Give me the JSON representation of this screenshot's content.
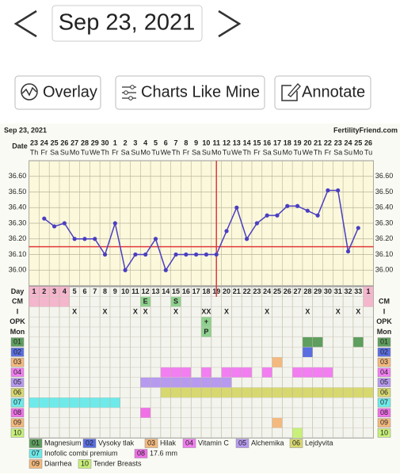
{
  "nav": {
    "date": "Sep 23, 2021"
  },
  "buttons": [
    "Overlay",
    "Charts Like Mine",
    "Annotate"
  ],
  "chart_data": {
    "type": "line",
    "title": "Sep 23, 2021",
    "site": "FertilityFriend.com",
    "date_label": "Date",
    "dates": [
      "23",
      "24",
      "25",
      "26",
      "27",
      "28",
      "29",
      "30",
      "1",
      "2",
      "3",
      "4",
      "5",
      "6",
      "7",
      "8",
      "9",
      "10",
      "11",
      "12",
      "13",
      "14",
      "15",
      "16",
      "17",
      "18",
      "19",
      "20",
      "21",
      "22",
      "23",
      "24",
      "25",
      "26"
    ],
    "weekdays": [
      "Th",
      "Fr",
      "Sa",
      "Su",
      "Mo",
      "Tu",
      "We",
      "Th",
      "Fr",
      "Sa",
      "Su",
      "Mo",
      "Tu",
      "We",
      "Th",
      "Fr",
      "Sa",
      "Su",
      "Mo",
      "Tu",
      "We",
      "Th",
      "Fr",
      "Sa",
      "Su",
      "Mo",
      "Tu",
      "We",
      "Th",
      "Fr",
      "Sa",
      "Su",
      "Mo",
      "Tu"
    ],
    "temps": {
      "color": "#4a3fc0",
      "values": [
        null,
        36.33,
        36.28,
        36.3,
        36.2,
        36.2,
        36.2,
        36.1,
        36.3,
        36.0,
        36.1,
        36.1,
        36.2,
        36.0,
        36.1,
        36.1,
        36.1,
        36.1,
        36.1,
        36.25,
        36.4,
        36.2,
        36.3,
        36.35,
        36.35,
        36.41,
        36.41,
        36.38,
        36.35,
        36.51,
        36.51,
        36.12,
        36.27,
        null
      ]
    },
    "ylim": [
      35.9,
      36.7
    ],
    "yticks": [
      {
        "value": 36.0,
        "label": "36.00"
      },
      {
        "value": 36.1,
        "label": "36.10"
      },
      {
        "value": 36.2,
        "label": "36.20"
      },
      {
        "value": 36.3,
        "label": "36.30"
      },
      {
        "value": 36.4,
        "label": "36.40"
      },
      {
        "value": 36.5,
        "label": "36.50"
      },
      {
        "value": 36.6,
        "label": "36.60"
      }
    ],
    "grid": true,
    "coverline": 36.15,
    "ovulation_day": 19,
    "line_color": "#e03a3a",
    "day_row": {
      "label": "Day",
      "values": [
        1,
        2,
        3,
        4,
        5,
        6,
        7,
        8,
        9,
        10,
        11,
        12,
        13,
        14,
        15,
        16,
        17,
        18,
        19,
        20,
        21,
        22,
        23,
        24,
        25,
        26,
        27,
        28,
        29,
        30,
        31,
        32,
        33,
        1
      ]
    },
    "period": {
      "color": "#f4b6cc",
      "cells": [
        true,
        true,
        true,
        true,
        null,
        null,
        null,
        null,
        null,
        null,
        null,
        null,
        null,
        null,
        null,
        null,
        null,
        null,
        null,
        null,
        null,
        null,
        null,
        null,
        null,
        null,
        null,
        null,
        null,
        null,
        null,
        null,
        null,
        true
      ]
    },
    "text_rows": [
      {
        "label": "CM",
        "fill": "#8fd18f",
        "values": [
          null,
          null,
          null,
          null,
          null,
          null,
          null,
          null,
          null,
          null,
          null,
          "E",
          null,
          null,
          "S",
          null,
          null,
          null,
          null,
          null,
          null,
          null,
          null,
          null,
          null,
          null,
          null,
          null,
          null,
          null,
          null,
          null,
          null,
          null
        ]
      },
      {
        "label": "I",
        "values": [
          null,
          null,
          null,
          null,
          "X",
          null,
          null,
          "X",
          null,
          null,
          "X",
          "X",
          null,
          null,
          "X",
          null,
          null,
          "XX",
          null,
          "X",
          null,
          null,
          null,
          "X",
          null,
          null,
          null,
          "X",
          null,
          null,
          "X",
          null,
          "X",
          null
        ]
      },
      {
        "label": "OPK",
        "fill": "#8fd18f",
        "values": [
          null,
          null,
          null,
          null,
          null,
          null,
          null,
          null,
          null,
          null,
          null,
          null,
          null,
          null,
          null,
          null,
          null,
          "+",
          null,
          null,
          null,
          null,
          null,
          null,
          null,
          null,
          null,
          null,
          null,
          null,
          null,
          null,
          null,
          null
        ]
      },
      {
        "label": "Mon",
        "fill": "#8fd18f",
        "values": [
          null,
          null,
          null,
          null,
          null,
          null,
          null,
          null,
          null,
          null,
          null,
          null,
          null,
          null,
          null,
          null,
          null,
          "P",
          null,
          null,
          null,
          null,
          null,
          null,
          null,
          null,
          null,
          null,
          null,
          null,
          null,
          null,
          null,
          null
        ]
      }
    ],
    "symptom_rows": [
      {
        "label": "01",
        "name": "Magnesium",
        "color": "#5e9e5e",
        "cells": [
          null,
          null,
          null,
          null,
          null,
          null,
          null,
          null,
          null,
          null,
          null,
          null,
          null,
          null,
          null,
          null,
          null,
          null,
          null,
          null,
          null,
          null,
          null,
          null,
          null,
          null,
          null,
          true,
          true,
          null,
          null,
          null,
          true,
          null
        ]
      },
      {
        "label": "02",
        "name": "Vysoky tlak",
        "color": "#5a6ee0",
        "cells": [
          null,
          null,
          null,
          null,
          null,
          null,
          null,
          null,
          null,
          null,
          null,
          null,
          null,
          null,
          null,
          null,
          null,
          null,
          null,
          null,
          null,
          null,
          null,
          null,
          null,
          null,
          null,
          true,
          null,
          null,
          null,
          null,
          null,
          null
        ]
      },
      {
        "label": "03",
        "name": "Hilak",
        "color": "#f4b97e",
        "cells": [
          null,
          null,
          null,
          null,
          null,
          null,
          null,
          null,
          null,
          null,
          null,
          null,
          null,
          null,
          null,
          null,
          null,
          null,
          null,
          null,
          null,
          null,
          null,
          null,
          true,
          null,
          null,
          null,
          null,
          null,
          null,
          null,
          null,
          null
        ]
      },
      {
        "label": "04",
        "name": "Vitamin C",
        "color": "#f27ef2",
        "cells": [
          null,
          null,
          null,
          null,
          null,
          null,
          null,
          null,
          null,
          null,
          null,
          null,
          null,
          true,
          true,
          true,
          null,
          true,
          null,
          true,
          true,
          true,
          null,
          true,
          null,
          null,
          true,
          true,
          true,
          true,
          null,
          null,
          null,
          null
        ]
      },
      {
        "label": "05",
        "name": "Alchemika",
        "color": "#b79af0",
        "cells": [
          null,
          null,
          null,
          null,
          null,
          null,
          null,
          null,
          null,
          null,
          null,
          true,
          true,
          true,
          true,
          true,
          true,
          true,
          true,
          true,
          null,
          null,
          null,
          null,
          null,
          null,
          null,
          null,
          null,
          null,
          null,
          null,
          null,
          null
        ]
      },
      {
        "label": "06",
        "name": "Lejdyvita",
        "color": "#d8d870",
        "cells": [
          null,
          null,
          null,
          null,
          null,
          null,
          null,
          null,
          null,
          null,
          null,
          null,
          null,
          true,
          true,
          true,
          true,
          true,
          true,
          true,
          true,
          true,
          true,
          true,
          true,
          true,
          true,
          true,
          true,
          true,
          true,
          true,
          true,
          true
        ]
      },
      {
        "label": "07",
        "name": "Inofolic combi premium",
        "color": "#6eeaea",
        "cells": [
          true,
          true,
          true,
          true,
          true,
          true,
          true,
          true,
          true,
          null,
          null,
          null,
          null,
          null,
          null,
          null,
          null,
          null,
          null,
          null,
          null,
          null,
          null,
          null,
          null,
          null,
          null,
          null,
          null,
          null,
          null,
          null,
          null,
          null
        ]
      },
      {
        "label": "08",
        "name": "17.6 mm",
        "color": "#f070e8",
        "cells": [
          null,
          null,
          null,
          null,
          null,
          null,
          null,
          null,
          null,
          null,
          null,
          true,
          null,
          null,
          null,
          null,
          null,
          null,
          null,
          null,
          null,
          null,
          null,
          null,
          null,
          null,
          null,
          null,
          null,
          null,
          null,
          null,
          null,
          null
        ]
      },
      {
        "label": "09",
        "name": "Diarrhea",
        "color": "#f4b97e",
        "cells": [
          null,
          null,
          null,
          null,
          null,
          null,
          null,
          null,
          null,
          null,
          null,
          null,
          null,
          null,
          null,
          null,
          null,
          null,
          null,
          null,
          null,
          null,
          null,
          null,
          true,
          null,
          null,
          null,
          null,
          null,
          null,
          null,
          null,
          null
        ]
      },
      {
        "label": "10",
        "name": "Tender Breasts",
        "color": "#c8f07a",
        "cells": [
          null,
          null,
          null,
          null,
          null,
          null,
          null,
          null,
          null,
          null,
          null,
          null,
          null,
          null,
          null,
          null,
          null,
          null,
          null,
          null,
          null,
          null,
          null,
          null,
          null,
          null,
          true,
          null,
          null,
          null,
          null,
          null,
          null,
          null
        ]
      }
    ]
  }
}
